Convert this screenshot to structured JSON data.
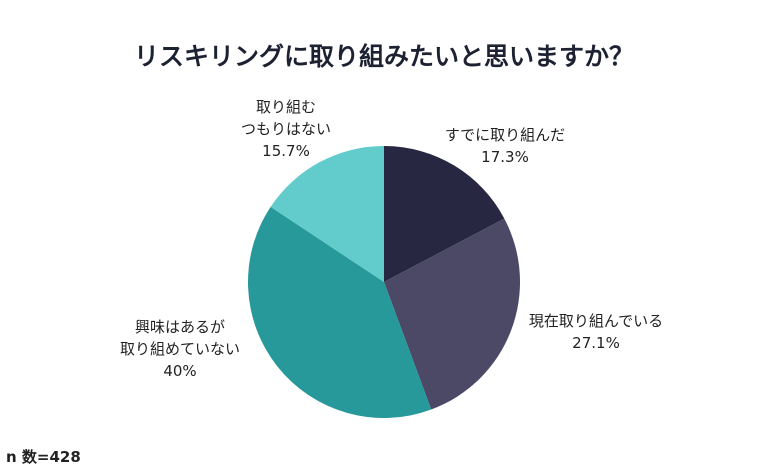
{
  "chart_data": {
    "type": "pie",
    "title": "リスキリングに取り組みたいと思いますか？",
    "note": "n 数=428",
    "slices": [
      {
        "label_lines": [
          "すでに取り組んだ"
        ],
        "value": 17.3,
        "value_label": "17.3%",
        "color": "#272742"
      },
      {
        "label_lines": [
          "現在取り組んでいる"
        ],
        "value": 27.1,
        "value_label": "27.1%",
        "color": "#4b4966"
      },
      {
        "label_lines": [
          "興味はあるが",
          "取り組めていない"
        ],
        "value": 40,
        "value_label": "40%",
        "color": "#27999b"
      },
      {
        "label_lines": [
          "取り組む",
          "つもりはない"
        ],
        "value": 15.7,
        "value_label": "15.7%",
        "color": "#62cbcb"
      }
    ]
  }
}
